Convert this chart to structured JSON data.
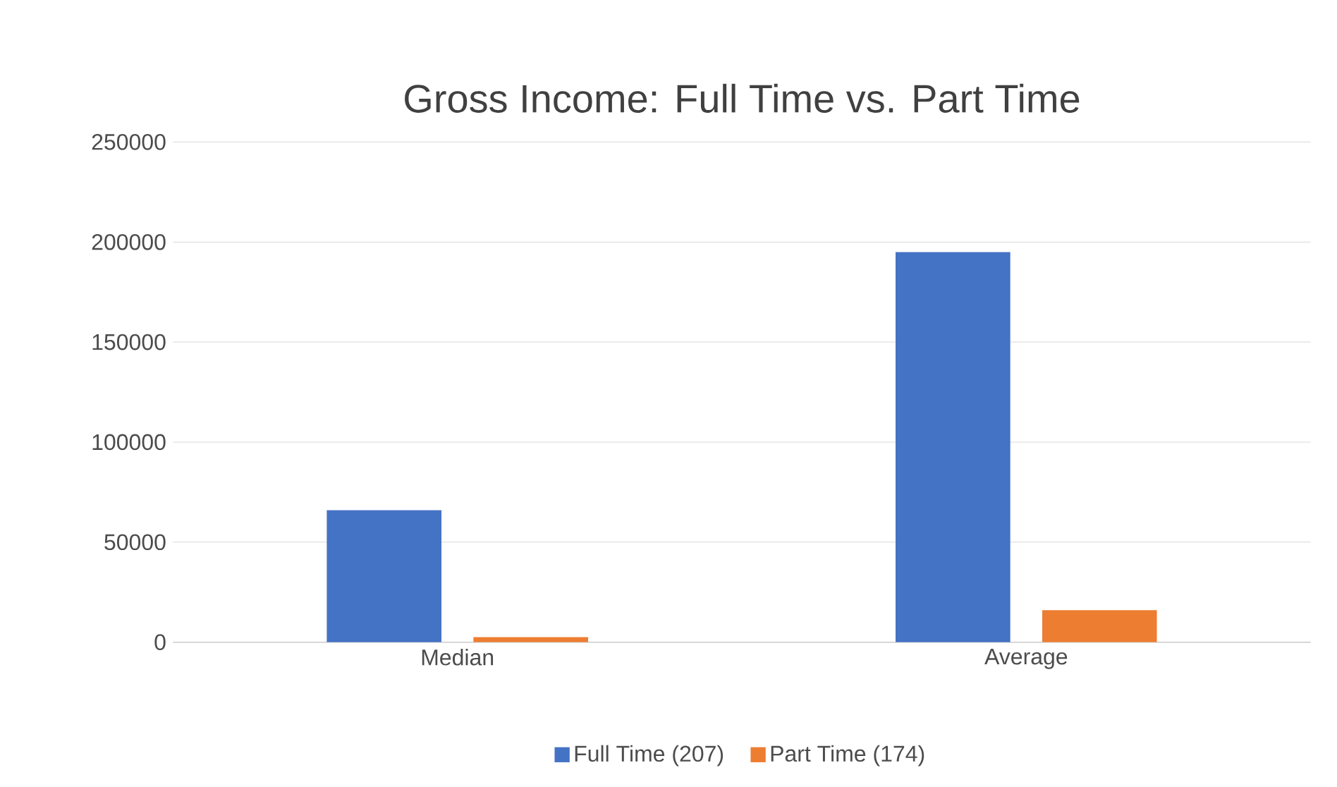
{
  "chart_data": {
    "type": "bar",
    "title": "Gross Income: Full Time vs. Part Time",
    "categories": [
      "Median",
      "Average"
    ],
    "series": [
      {
        "name": "Full Time (207)",
        "color": "#4472c4",
        "values": [
          66000,
          195000
        ]
      },
      {
        "name": "Part Time (174)",
        "color": "#ed7d31",
        "values": [
          2500,
          16000
        ]
      }
    ],
    "ylim": [
      0,
      250000
    ],
    "yticks": [
      0,
      50000,
      100000,
      150000,
      200000,
      250000
    ],
    "grid": "y",
    "legend": "bottom"
  }
}
